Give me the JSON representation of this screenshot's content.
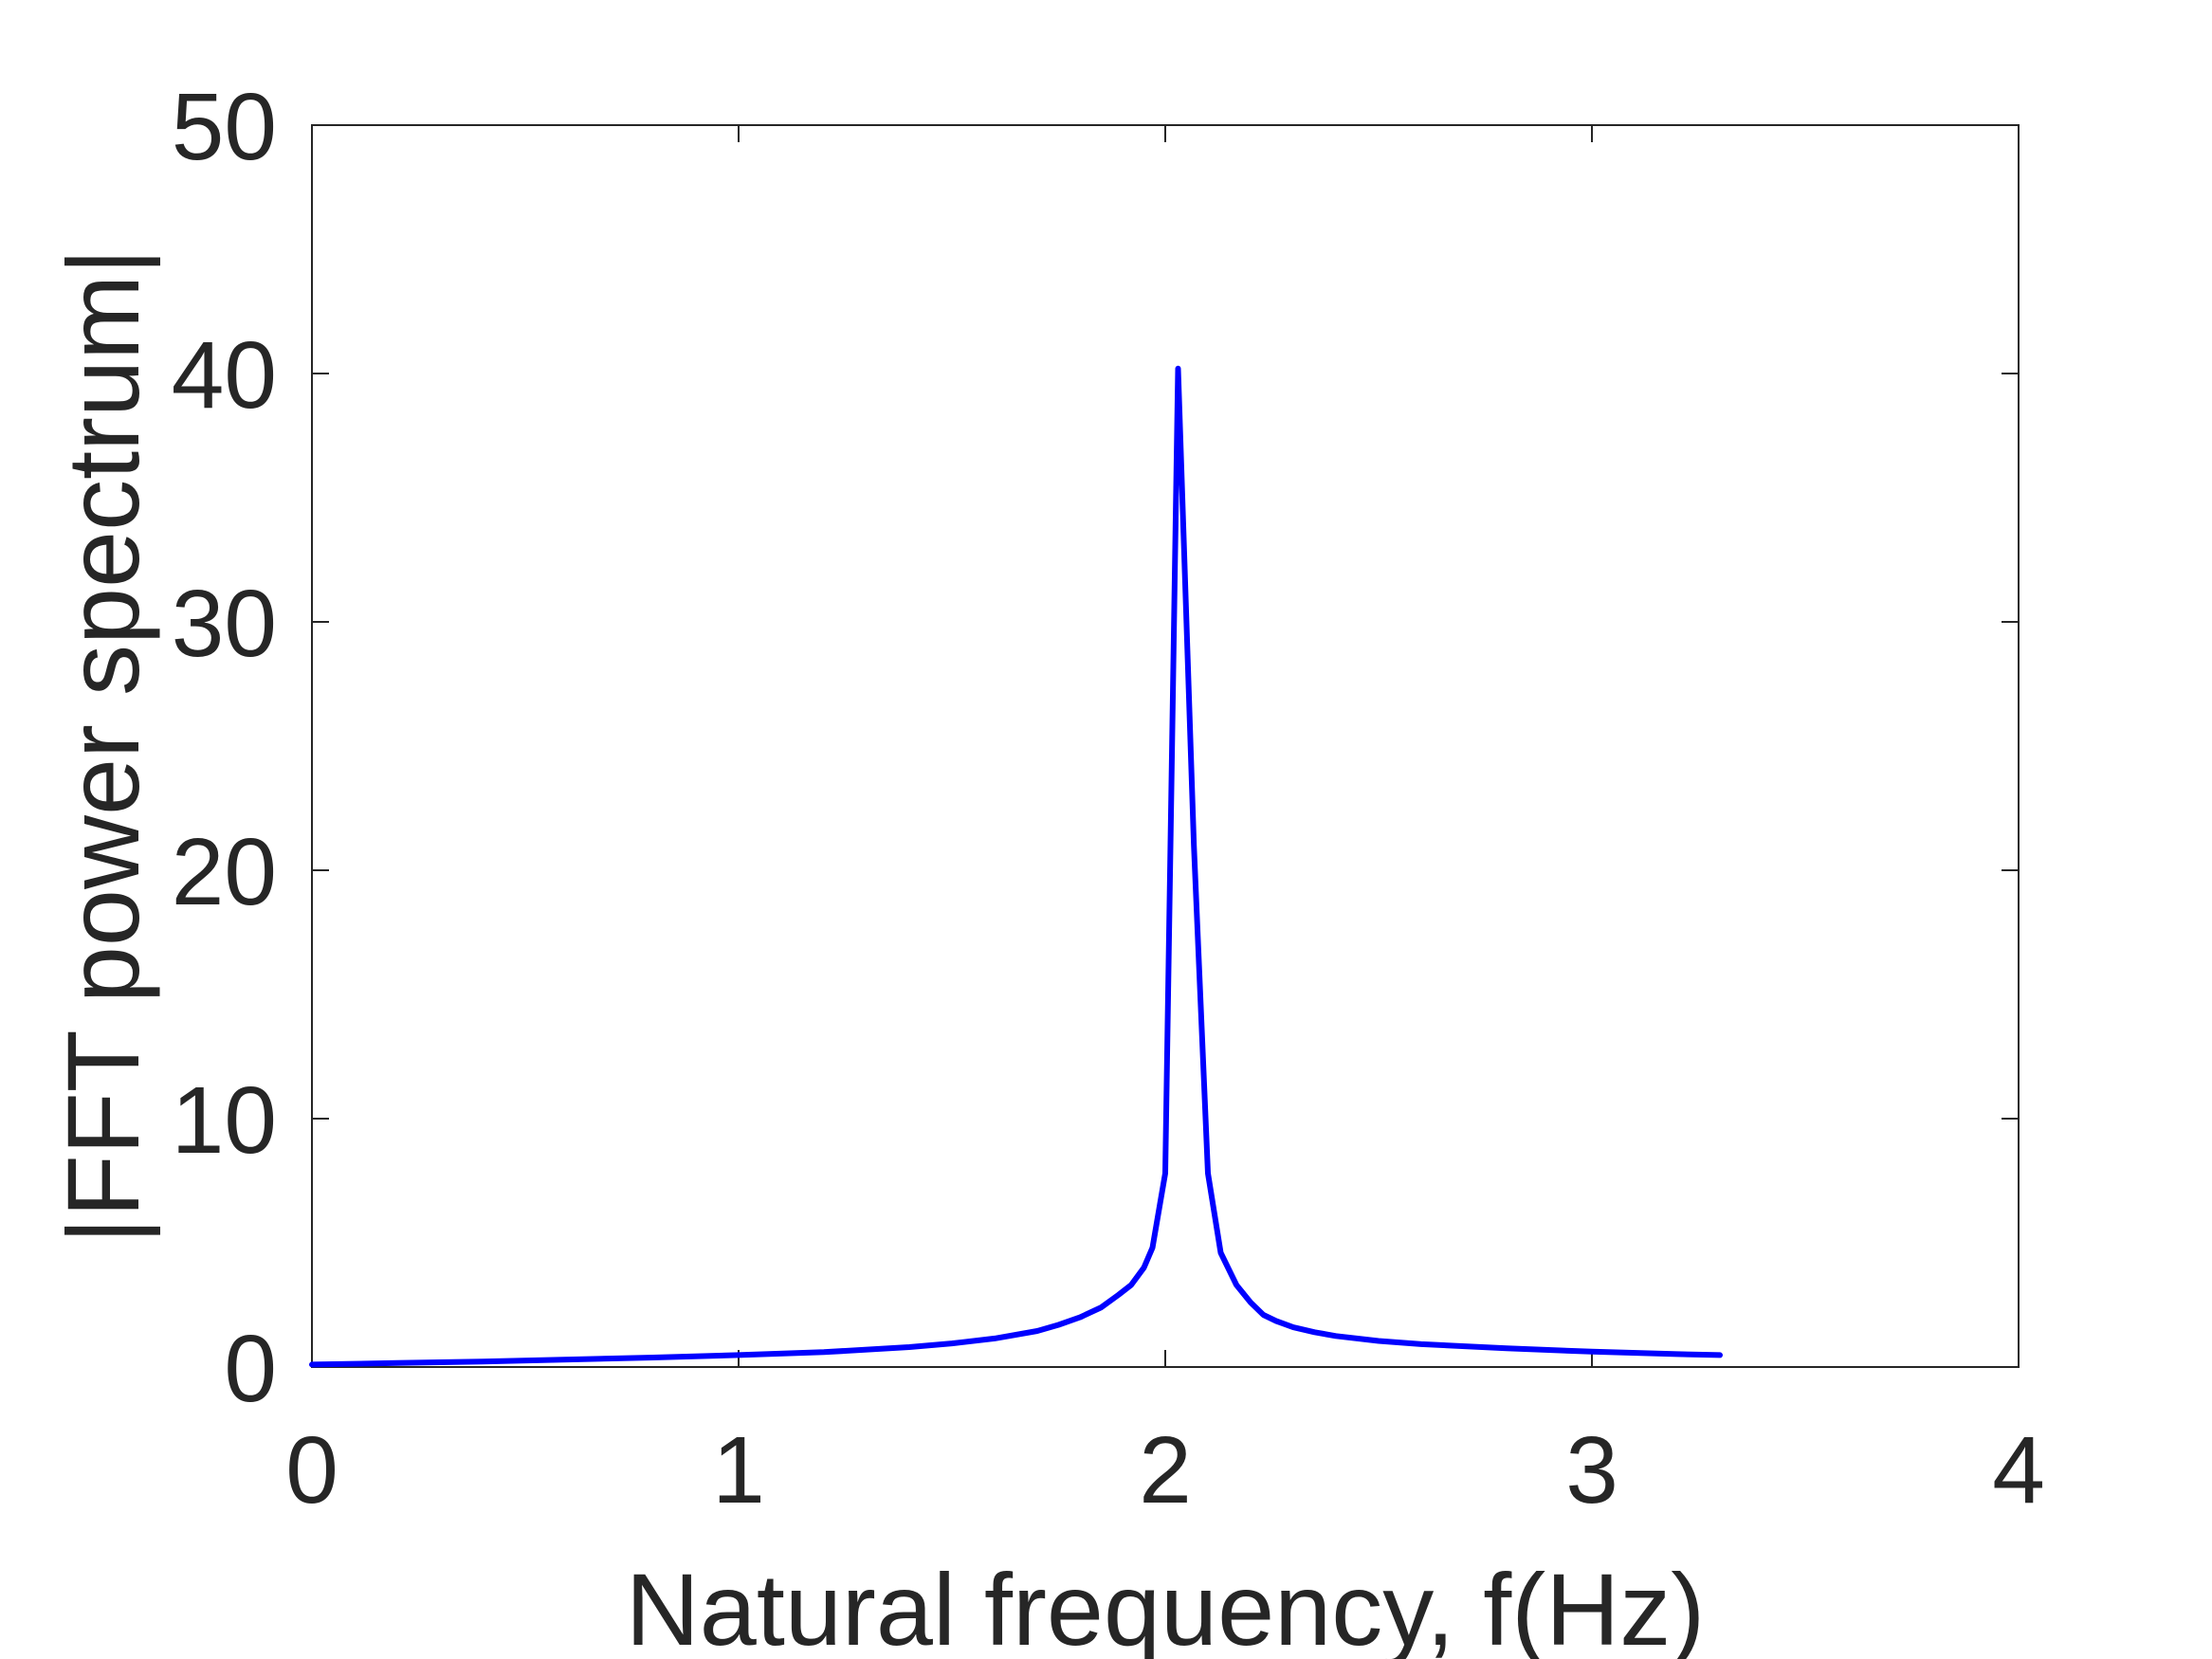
{
  "chart_data": {
    "type": "line",
    "title": "",
    "xlabel": "Natural frequency, f(Hz)",
    "ylabel": "|FFT power spectrum|",
    "xlim": [
      0,
      4
    ],
    "ylim": [
      0,
      50
    ],
    "xticks": [
      "0",
      "1",
      "2",
      "3",
      "4"
    ],
    "yticks": [
      "0",
      "10",
      "20",
      "30",
      "40",
      "50"
    ],
    "grid": false,
    "legend": "none",
    "series": [
      {
        "color": "#0000ff",
        "x": [
          0,
          0.2,
          0.4,
          0.6,
          0.8,
          1.0,
          1.2,
          1.4,
          1.5,
          1.6,
          1.7,
          1.75,
          1.8,
          1.85,
          1.89,
          1.92,
          1.95,
          1.97,
          2.0,
          2.03,
          2.067,
          2.1,
          2.13,
          2.167,
          2.2,
          2.23,
          2.26,
          2.3,
          2.35,
          2.4,
          2.5,
          2.6,
          2.8,
          3.0,
          3.2,
          3.3
        ],
        "y": [
          0.1,
          0.16,
          0.22,
          0.3,
          0.38,
          0.48,
          0.6,
          0.8,
          0.95,
          1.15,
          1.45,
          1.7,
          2.0,
          2.4,
          2.9,
          3.3,
          4.0,
          4.8,
          7.8,
          40.2,
          21,
          7.8,
          4.6,
          3.3,
          2.6,
          2.1,
          1.85,
          1.6,
          1.4,
          1.25,
          1.05,
          0.92,
          0.75,
          0.62,
          0.52,
          0.48
        ]
      }
    ]
  }
}
